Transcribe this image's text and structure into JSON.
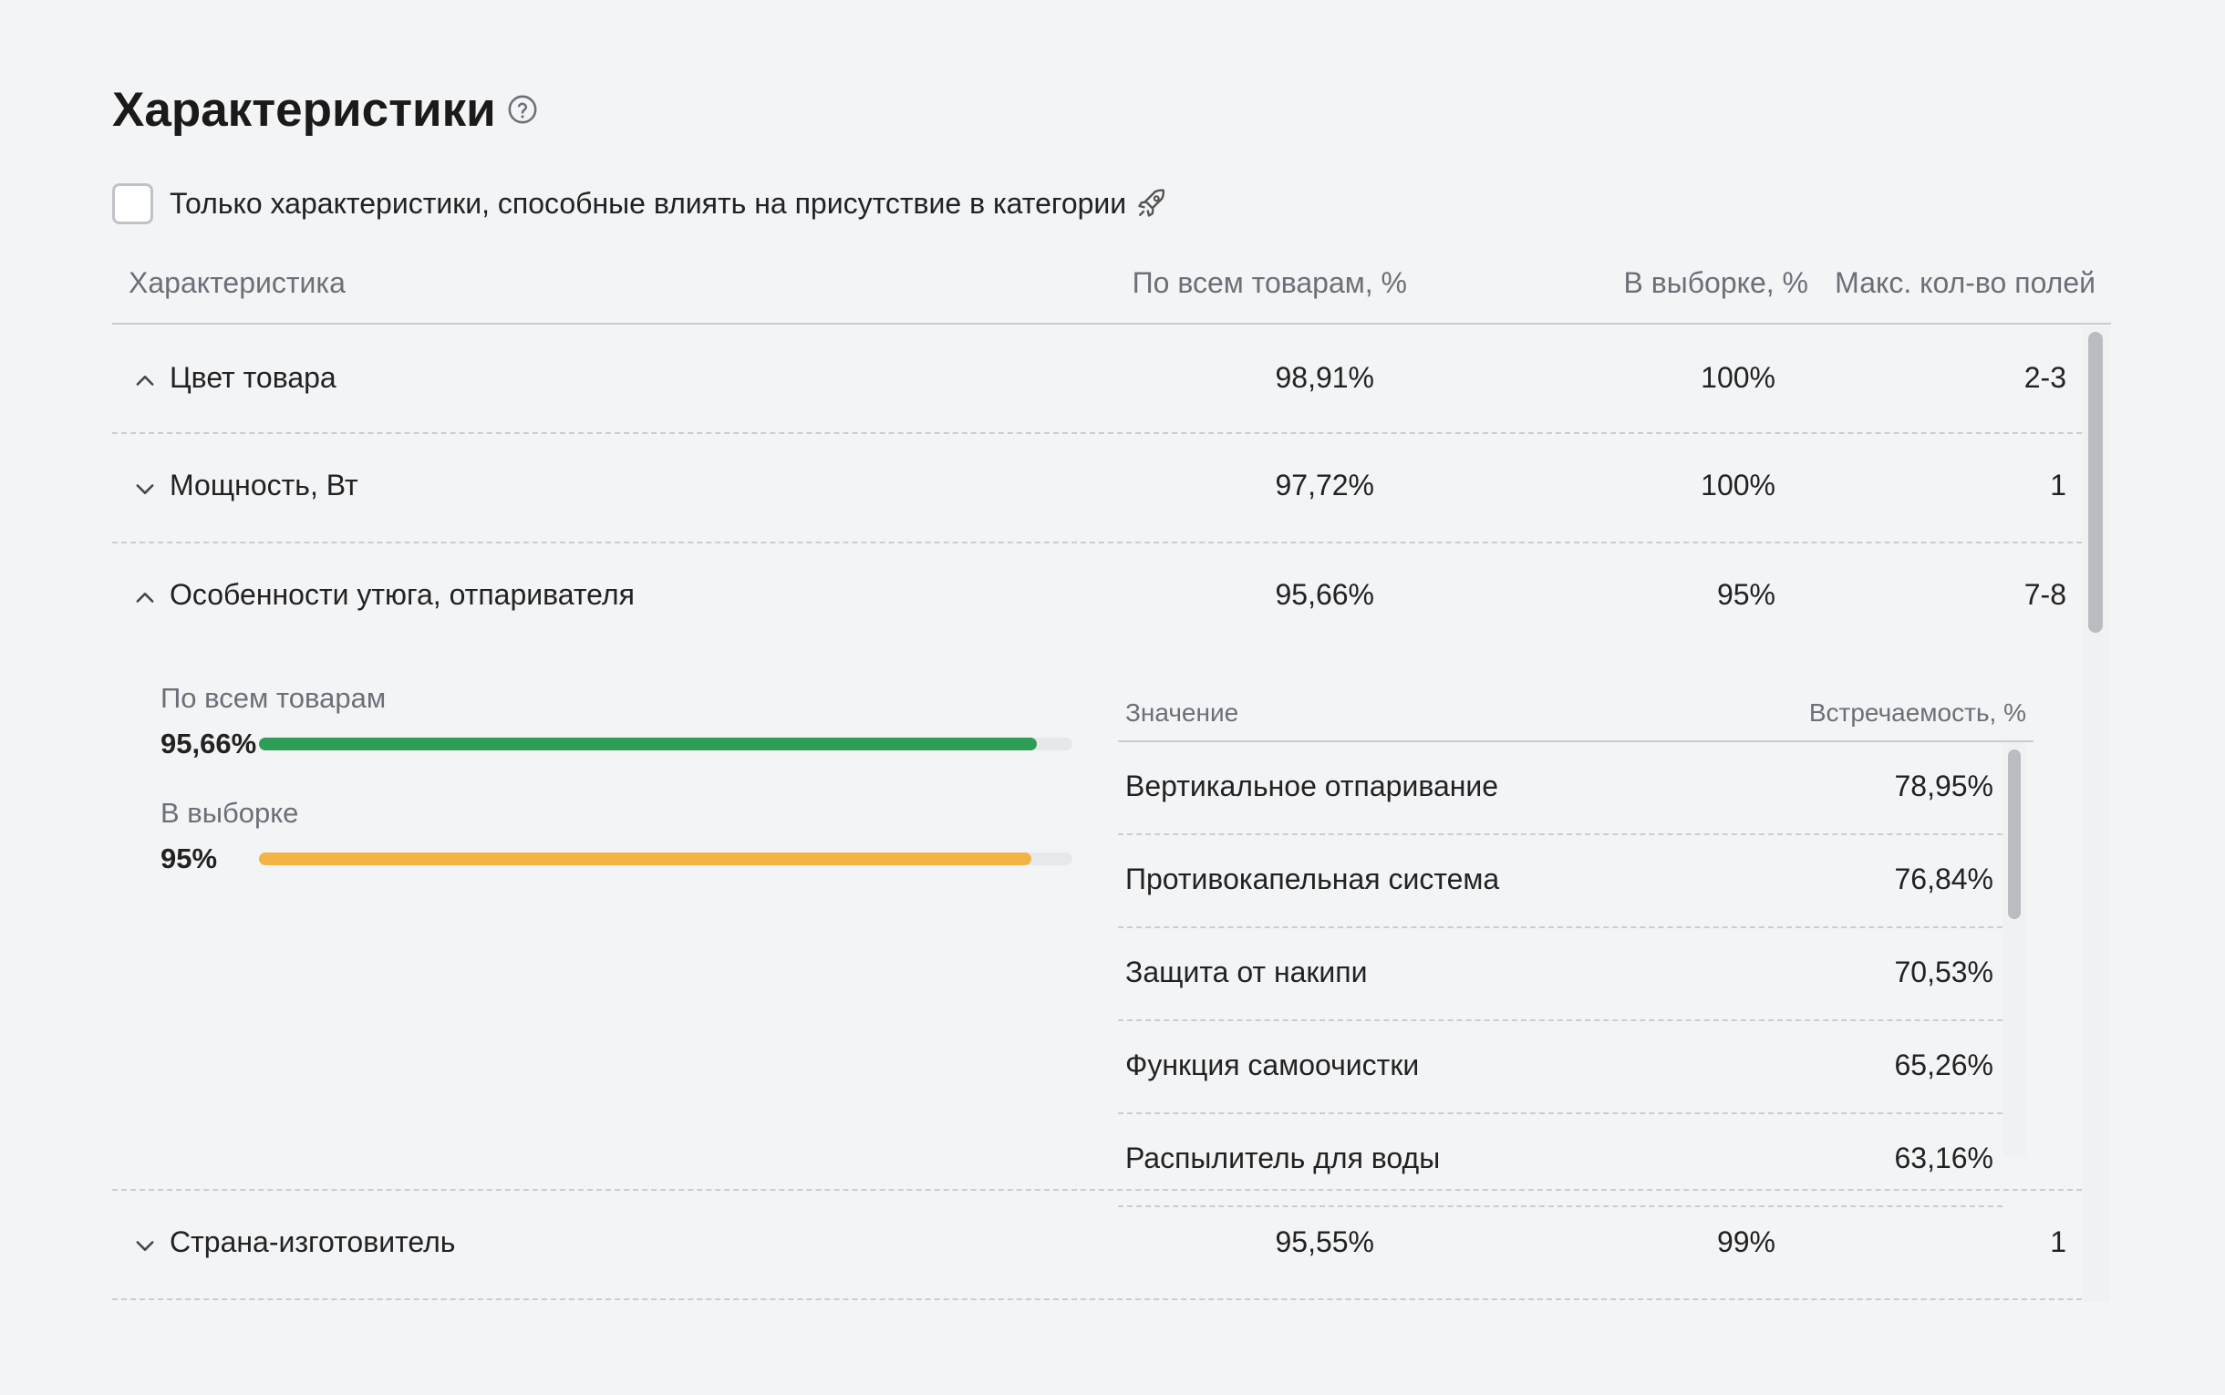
{
  "header": {
    "title": "Характеристики",
    "help_icon": "question-circle-icon"
  },
  "filter": {
    "checked": false,
    "label": "Только характеристики, способные влиять на присутствие в категории",
    "icon": "rocket-icon"
  },
  "table": {
    "columns": {
      "name": "Характеристика",
      "all": "По всем товарам, %",
      "sample": "В выборке, %",
      "max": "Макс. кол-во полей"
    },
    "rows": [
      {
        "name": "Цвет товара",
        "all": "98,91%",
        "sample": "100%",
        "max": "2-3",
        "chevron": "chevron-up-icon"
      },
      {
        "name": "Мощность, Вт",
        "all": "97,72%",
        "sample": "100%",
        "max": "1",
        "chevron": "chevron-down-icon"
      },
      {
        "name": "Особенности утюга, отпаривателя",
        "all": "95,66%",
        "sample": "95%",
        "max": "7-8",
        "chevron": "chevron-up-icon",
        "expanded": true
      },
      {
        "name": "Страна-изготовитель",
        "all": "95,55%",
        "sample": "99%",
        "max": "1",
        "chevron": "chevron-down-icon"
      }
    ]
  },
  "detail": {
    "all_label": "По всем товарам",
    "all_value": "95,66%",
    "all_fraction": 0.9566,
    "all_color": "#2e9e57",
    "sample_label": "В выборке",
    "sample_value": "95%",
    "sample_fraction": 0.95,
    "sample_color": "#f2b544",
    "values_table": {
      "col_value": "Значение",
      "col_freq": "Встречаемость, %",
      "rows": [
        {
          "name": "Вертикальное отпаривание",
          "freq": "78,95%"
        },
        {
          "name": "Противокапельная система",
          "freq": "76,84%"
        },
        {
          "name": "Защита от накипи",
          "freq": "70,53%"
        },
        {
          "name": "Функция самоочистки",
          "freq": "65,26%"
        },
        {
          "name": "Распылитель для воды",
          "freq": "63,16%"
        }
      ]
    }
  }
}
